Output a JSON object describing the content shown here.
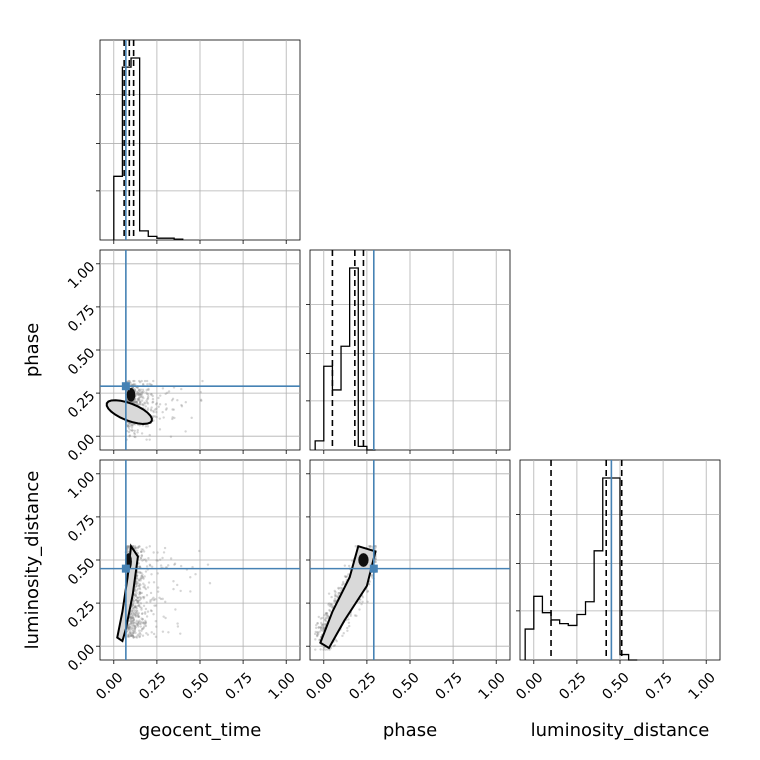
{
  "chart_data": {
    "type": "corner",
    "parameters": [
      "geocent_time",
      "phase",
      "luminosity_distance"
    ],
    "axis_range": [
      -0.08,
      1.08
    ],
    "tick_labels": [
      "0.00",
      "0.25",
      "0.50",
      "0.75",
      "1.00"
    ],
    "tick_values": [
      0.0,
      0.25,
      0.5,
      0.75,
      1.0
    ],
    "grid": true,
    "truths": {
      "geocent_time": 0.07,
      "phase": 0.29,
      "luminosity_distance": 0.45
    },
    "truth_color": "#4682b4",
    "histograms": {
      "geocent_time": {
        "edges": [
          0.0,
          0.05,
          0.1,
          0.15,
          0.2,
          0.25,
          0.3,
          0.35,
          0.4
        ],
        "heights": [
          0.35,
          0.95,
          1.0,
          0.05,
          0.02,
          0.01,
          0.01,
          0.005
        ],
        "quantiles": [
          0.06,
          0.09,
          0.115
        ]
      },
      "phase": {
        "edges": [
          -0.05,
          0.0,
          0.05,
          0.1,
          0.15,
          0.2,
          0.25,
          0.3
        ],
        "heights": [
          0.05,
          0.46,
          0.33,
          0.57,
          1.0,
          0.02,
          0.0
        ],
        "quantiles": [
          0.05,
          0.18,
          0.23
        ]
      },
      "luminosity_distance": {
        "edges": [
          -0.05,
          0.0,
          0.05,
          0.1,
          0.15,
          0.2,
          0.25,
          0.3,
          0.35,
          0.4,
          0.45,
          0.5,
          0.55,
          0.6
        ],
        "heights": [
          0.17,
          0.35,
          0.26,
          0.22,
          0.2,
          0.19,
          0.25,
          0.32,
          0.6,
          1.0,
          1.0,
          0.03,
          0.0
        ],
        "quantiles": [
          0.1,
          0.42,
          0.51
        ]
      }
    }
  }
}
